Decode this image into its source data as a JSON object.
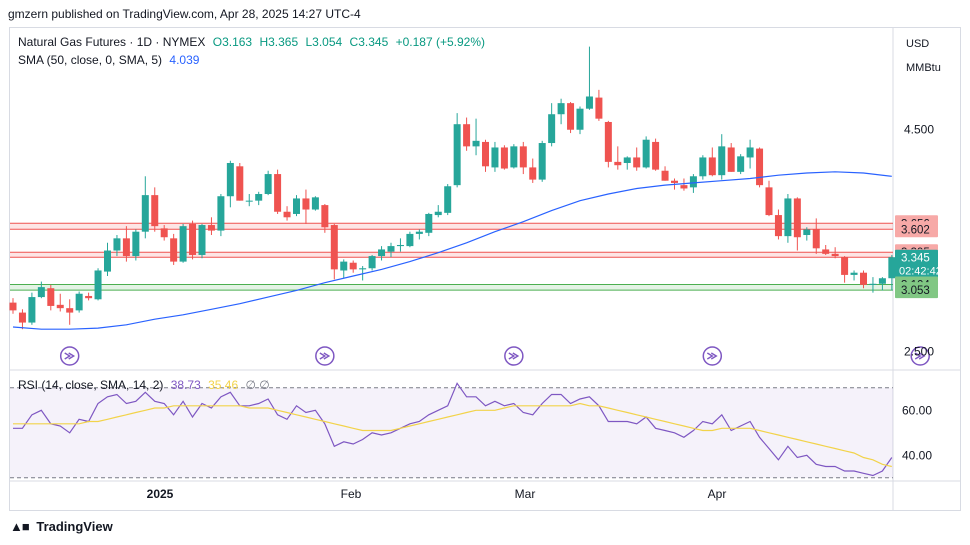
{
  "header": {
    "published": "gmzern published on TradingView.com, Apr 28, 2025 14:27 UTC-4"
  },
  "legend": {
    "symbol": "Natural Gas Futures · 1D · NYMEX",
    "open": "O3.163",
    "high": "H3.365",
    "low": "L3.054",
    "close": "C3.345",
    "change": "+0.187 (+5.92%)",
    "sma_label": "SMA (50, close, 0, SMA, 5)",
    "sma_value": "4.039",
    "rsi_label": "RSI (14, close, SMA, 14, 2)",
    "rsi_value": "38.73",
    "rsi_ma_value": "35.46",
    "rsi_extra": "∅ ∅"
  },
  "axis": {
    "currency": "USD",
    "unit": "MMBtu"
  },
  "footer": {
    "brand": "TradingView"
  },
  "colors": {
    "up": "#26a69a",
    "down": "#ef5350",
    "sma": "#2962ff",
    "rsi": "#7e57c2",
    "rsi_ma": "#f2d34a",
    "resistance": "#ef5350",
    "support": "#4caf50"
  },
  "chart_data": [
    {
      "type": "candlestick",
      "y_axis": {
        "ticks": [
          4.5,
          2.5
        ],
        "tick_labels": [
          "4.500",
          "2.500"
        ],
        "range": [
          2.35,
          5.4
        ]
      },
      "x_axis": {
        "labels": [
          "2025",
          "Feb",
          "Mar",
          "Apr"
        ]
      },
      "price_labels": [
        {
          "label": "3.656",
          "value": 3.656,
          "kind": "resistance"
        },
        {
          "label": "3.602",
          "value": 3.602,
          "kind": "resistance"
        },
        {
          "label": "3.395",
          "value": 3.395,
          "kind": "resistance"
        },
        {
          "label": "3.349",
          "value": 3.349,
          "kind": "resistance"
        },
        {
          "label": "3.345",
          "value": 3.345,
          "kind": "last",
          "countdown": "02:42:42"
        },
        {
          "label": "3.104",
          "value": 3.104,
          "kind": "support"
        },
        {
          "label": "3.053",
          "value": 3.053,
          "kind": "support"
        }
      ],
      "zones": [
        {
          "from": 3.602,
          "to": 3.656,
          "kind": "resistance"
        },
        {
          "from": 3.349,
          "to": 3.395,
          "kind": "resistance"
        },
        {
          "from": 3.053,
          "to": 3.104,
          "kind": "support"
        }
      ],
      "candles": [
        [
          2.94,
          2.98,
          2.84,
          2.87
        ],
        [
          2.85,
          2.88,
          2.7,
          2.76
        ],
        [
          2.76,
          3.03,
          2.74,
          2.99
        ],
        [
          2.99,
          3.13,
          2.98,
          3.08
        ],
        [
          3.07,
          3.1,
          2.87,
          2.91
        ],
        [
          2.92,
          3.02,
          2.86,
          2.89
        ],
        [
          2.89,
          2.97,
          2.74,
          2.85
        ],
        [
          2.87,
          3.04,
          2.85,
          3.02
        ],
        [
          3.0,
          3.03,
          2.96,
          2.98
        ],
        [
          2.97,
          3.25,
          2.96,
          3.23
        ],
        [
          3.22,
          3.48,
          3.18,
          3.41
        ],
        [
          3.41,
          3.55,
          3.36,
          3.52
        ],
        [
          3.52,
          3.63,
          3.31,
          3.36
        ],
        [
          3.36,
          3.6,
          3.32,
          3.58
        ],
        [
          3.58,
          4.08,
          3.52,
          3.91
        ],
        [
          3.91,
          3.98,
          3.58,
          3.63
        ],
        [
          3.61,
          3.64,
          3.5,
          3.53
        ],
        [
          3.52,
          3.56,
          3.28,
          3.31
        ],
        [
          3.31,
          3.65,
          3.3,
          3.63
        ],
        [
          3.65,
          3.68,
          3.33,
          3.37
        ],
        [
          3.37,
          3.65,
          3.34,
          3.64
        ],
        [
          3.64,
          3.71,
          3.55,
          3.59
        ],
        [
          3.59,
          3.92,
          3.54,
          3.9
        ],
        [
          3.9,
          4.22,
          3.8,
          4.2
        ],
        [
          4.17,
          4.2,
          3.86,
          3.86
        ],
        [
          3.86,
          3.92,
          3.81,
          3.86
        ],
        [
          3.86,
          3.94,
          3.82,
          3.92
        ],
        [
          3.92,
          4.13,
          3.91,
          4.1
        ],
        [
          4.1,
          4.14,
          3.74,
          3.76
        ],
        [
          3.76,
          3.81,
          3.68,
          3.71
        ],
        [
          3.74,
          3.91,
          3.72,
          3.88
        ],
        [
          3.88,
          3.96,
          3.65,
          3.78
        ],
        [
          3.78,
          3.9,
          3.77,
          3.89
        ],
        [
          3.82,
          3.83,
          3.57,
          3.62
        ],
        [
          3.64,
          3.65,
          3.15,
          3.24
        ],
        [
          3.23,
          3.33,
          3.16,
          3.31
        ],
        [
          3.3,
          3.32,
          3.21,
          3.24
        ],
        [
          3.24,
          3.27,
          3.14,
          3.25
        ],
        [
          3.25,
          3.37,
          3.23,
          3.36
        ],
        [
          3.36,
          3.45,
          3.32,
          3.42
        ],
        [
          3.4,
          3.48,
          3.35,
          3.45
        ],
        [
          3.45,
          3.52,
          3.4,
          3.46
        ],
        [
          3.45,
          3.58,
          3.44,
          3.56
        ],
        [
          3.56,
          3.6,
          3.51,
          3.58
        ],
        [
          3.57,
          3.75,
          3.54,
          3.74
        ],
        [
          3.73,
          3.82,
          3.71,
          3.76
        ],
        [
          3.75,
          4.01,
          3.73,
          3.99
        ],
        [
          4.0,
          4.65,
          3.98,
          4.55
        ],
        [
          4.55,
          4.61,
          4.31,
          4.35
        ],
        [
          4.35,
          4.6,
          4.27,
          4.4
        ],
        [
          4.39,
          4.41,
          4.12,
          4.17
        ],
        [
          4.16,
          4.39,
          4.12,
          4.34
        ],
        [
          4.34,
          4.36,
          4.14,
          4.15
        ],
        [
          4.16,
          4.37,
          4.15,
          4.35
        ],
        [
          4.35,
          4.39,
          4.1,
          4.16
        ],
        [
          4.16,
          4.24,
          4.02,
          4.05
        ],
        [
          4.05,
          4.4,
          4.03,
          4.38
        ],
        [
          4.38,
          4.74,
          4.35,
          4.64
        ],
        [
          4.64,
          4.78,
          4.55,
          4.74
        ],
        [
          4.74,
          4.75,
          4.47,
          4.5
        ],
        [
          4.5,
          4.71,
          4.46,
          4.69
        ],
        [
          4.69,
          5.25,
          4.68,
          4.8
        ],
        [
          4.79,
          4.86,
          4.58,
          4.6
        ],
        [
          4.57,
          4.58,
          4.16,
          4.21
        ],
        [
          4.21,
          4.35,
          4.14,
          4.18
        ],
        [
          4.2,
          4.26,
          4.14,
          4.25
        ],
        [
          4.25,
          4.34,
          4.13,
          4.16
        ],
        [
          4.16,
          4.44,
          4.15,
          4.41
        ],
        [
          4.39,
          4.42,
          4.13,
          4.14
        ],
        [
          4.13,
          4.17,
          4.04,
          4.04
        ],
        [
          4.04,
          4.06,
          3.96,
          4.02
        ],
        [
          4.0,
          4.06,
          3.95,
          3.97
        ],
        [
          3.98,
          4.1,
          3.93,
          4.08
        ],
        [
          4.08,
          4.27,
          4.05,
          4.25
        ],
        [
          4.25,
          4.34,
          4.08,
          4.09
        ],
        [
          4.09,
          4.46,
          4.05,
          4.35
        ],
        [
          4.34,
          4.38,
          4.12,
          4.12
        ],
        [
          4.12,
          4.28,
          4.1,
          4.26
        ],
        [
          4.25,
          4.41,
          4.15,
          4.34
        ],
        [
          4.33,
          4.34,
          3.98,
          4.0
        ],
        [
          3.98,
          4.04,
          3.72,
          3.73
        ],
        [
          3.73,
          3.78,
          3.51,
          3.54
        ],
        [
          3.54,
          3.92,
          3.48,
          3.88
        ],
        [
          3.88,
          3.89,
          3.41,
          3.53
        ],
        [
          3.55,
          3.62,
          3.5,
          3.6
        ],
        [
          3.6,
          3.7,
          3.38,
          3.43
        ],
        [
          3.42,
          3.46,
          3.37,
          3.38
        ],
        [
          3.38,
          3.44,
          3.34,
          3.36
        ],
        [
          3.35,
          3.36,
          3.12,
          3.19
        ],
        [
          3.19,
          3.23,
          3.14,
          3.21
        ],
        [
          3.21,
          3.23,
          3.07,
          3.1
        ],
        [
          3.1,
          3.17,
          3.03,
          3.11
        ],
        [
          3.11,
          3.17,
          3.05,
          3.16
        ],
        [
          3.16,
          3.37,
          3.05,
          3.35
        ]
      ],
      "sma": [
        [
          0,
          2.72
        ],
        [
          3,
          2.7
        ],
        [
          6,
          2.7
        ],
        [
          9,
          2.71
        ],
        [
          12,
          2.74
        ],
        [
          15,
          2.79
        ],
        [
          18,
          2.83
        ],
        [
          21,
          2.88
        ],
        [
          24,
          2.93
        ],
        [
          27,
          2.99
        ],
        [
          30,
          3.05
        ],
        [
          33,
          3.12
        ],
        [
          36,
          3.18
        ],
        [
          39,
          3.24
        ],
        [
          42,
          3.31
        ],
        [
          45,
          3.39
        ],
        [
          48,
          3.48
        ],
        [
          51,
          3.58
        ],
        [
          54,
          3.67
        ],
        [
          57,
          3.77
        ],
        [
          60,
          3.86
        ],
        [
          63,
          3.92
        ],
        [
          66,
          3.97
        ],
        [
          69,
          4.0
        ],
        [
          72,
          4.02
        ],
        [
          75,
          4.04
        ],
        [
          78,
          4.06
        ],
        [
          81,
          4.09
        ],
        [
          84,
          4.11
        ],
        [
          87,
          4.12
        ],
        [
          90,
          4.11
        ],
        [
          93,
          4.08
        ]
      ],
      "markers_at": [
        6,
        33,
        53,
        74,
        96
      ]
    },
    {
      "type": "line",
      "title": "RSI (14, close, SMA, 14, 2)",
      "y_axis": {
        "ticks": [
          60,
          40
        ],
        "tick_labels": [
          "60.00",
          "40.00"
        ],
        "range": [
          29,
          77
        ],
        "bands": [
          70,
          30
        ]
      },
      "series": [
        {
          "name": "RSI",
          "values": [
            52,
            52,
            58,
            60,
            54,
            53,
            50,
            56,
            55,
            63,
            66,
            67,
            63,
            64,
            68,
            64,
            63,
            58,
            64,
            57,
            63,
            61,
            66,
            68,
            62,
            62,
            63,
            65,
            58,
            56,
            62,
            59,
            60,
            54,
            44,
            46,
            45,
            47,
            50,
            49,
            50,
            52,
            54,
            55,
            58,
            60,
            62,
            72,
            66,
            66,
            62,
            64,
            62,
            63,
            59,
            58,
            63,
            67,
            67,
            63,
            65,
            66,
            62,
            55,
            55,
            55,
            54,
            57,
            52,
            51,
            50,
            48,
            51,
            55,
            54,
            58,
            51,
            53,
            55,
            48,
            43,
            38,
            44,
            39,
            40,
            36,
            35,
            35,
            33,
            33,
            32,
            31,
            33,
            39
          ]
        },
        {
          "name": "RSI MA",
          "values": [
            54,
            54,
            54,
            54,
            54,
            54,
            54,
            54,
            55,
            55,
            56,
            57,
            58,
            59,
            60,
            61,
            61,
            62,
            62,
            62,
            62,
            62,
            62,
            62,
            62,
            61,
            61,
            61,
            60,
            59,
            58,
            57,
            56,
            55,
            54,
            53,
            52,
            51,
            51,
            51,
            51,
            52,
            53,
            54,
            55,
            56,
            57,
            58,
            59,
            60,
            60,
            60,
            61,
            62,
            62,
            62,
            62,
            62,
            62,
            62,
            63,
            62,
            62,
            61,
            60,
            59,
            58,
            57,
            56,
            55,
            54,
            53,
            52,
            51,
            51,
            52,
            52,
            52,
            52,
            51,
            50,
            49,
            48,
            47,
            46,
            45,
            44,
            43,
            42,
            41,
            39,
            38,
            36,
            35
          ]
        }
      ]
    }
  ]
}
